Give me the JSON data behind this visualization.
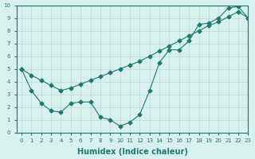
{
  "xlabel": "Humidex (Indice chaleur)",
  "line1_x": [
    0,
    1,
    2,
    3,
    4,
    5,
    6,
    7,
    8,
    9,
    10,
    11,
    12,
    13,
    14,
    15,
    16,
    17,
    18,
    19,
    20,
    21,
    22,
    23
  ],
  "line1_y": [
    5,
    3.3,
    2.3,
    1.7,
    1.6,
    2.3,
    2.4,
    2.4,
    1.2,
    1.0,
    0.5,
    0.8,
    1.4,
    3.3,
    5.5,
    6.5,
    6.5,
    7.2,
    8.5,
    8.6,
    9.0,
    9.8,
    9.9,
    9.0
  ],
  "line2_x": [
    0,
    1,
    2,
    3,
    4,
    5,
    6,
    7,
    8,
    9,
    10,
    11,
    12,
    13,
    14,
    15,
    16,
    17,
    18,
    19,
    20,
    21,
    22,
    23
  ],
  "line2_y": [
    5,
    4.5,
    4.1,
    3.7,
    3.3,
    3.5,
    3.8,
    4.1,
    4.4,
    4.7,
    5.0,
    5.3,
    5.6,
    6.0,
    6.4,
    6.8,
    7.2,
    7.6,
    8.0,
    8.4,
    8.7,
    9.1,
    9.5,
    9.0
  ],
  "line_color": "#1a7a6e",
  "marker": "D",
  "marker_size": 2.5,
  "bg_color": "#d8f0ee",
  "grid_color": "#b8dcd8",
  "xlim": [
    -0.5,
    23
  ],
  "ylim": [
    0,
    10
  ],
  "xticks": [
    0,
    1,
    2,
    3,
    4,
    5,
    6,
    7,
    8,
    9,
    10,
    11,
    12,
    13,
    14,
    15,
    16,
    17,
    18,
    19,
    20,
    21,
    22,
    23
  ],
  "yticks": [
    0,
    1,
    2,
    3,
    4,
    5,
    6,
    7,
    8,
    9,
    10
  ],
  "tick_fontsize": 5.0,
  "label_fontsize": 7
}
